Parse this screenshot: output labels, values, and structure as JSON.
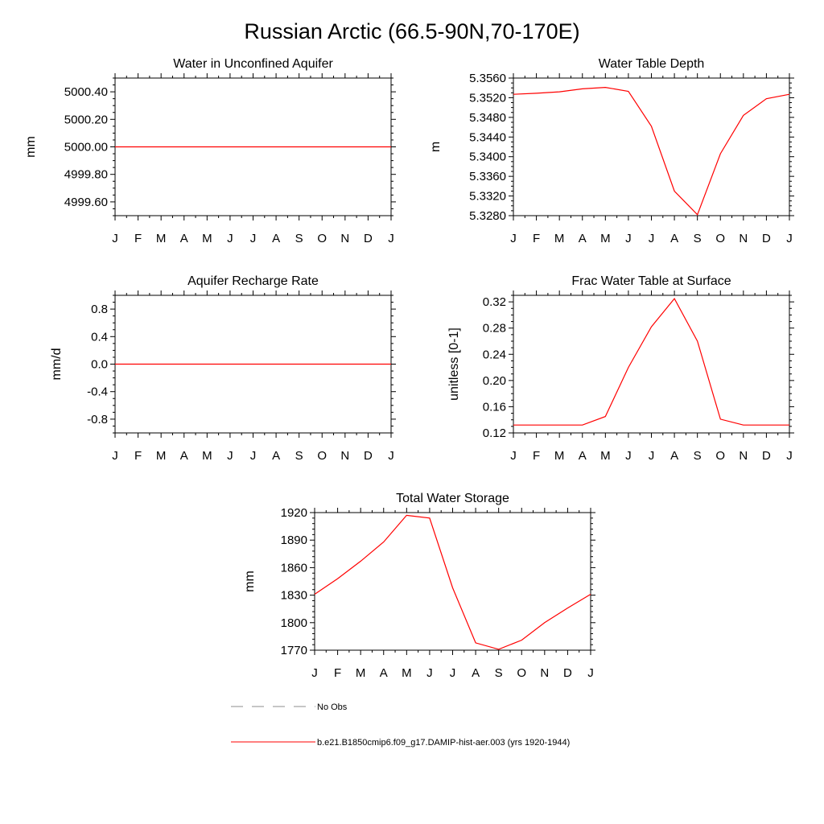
{
  "figure": {
    "title": "Russian Arctic (66.5-90N,70-170E)"
  },
  "months": [
    "J",
    "F",
    "M",
    "A",
    "M",
    "J",
    "J",
    "A",
    "S",
    "O",
    "N",
    "D",
    "J"
  ],
  "chart_data": [
    {
      "type": "line",
      "title": "Water in Unconfined Aquifer",
      "ylabel": "mm",
      "ylim": [
        4999.5,
        5000.5
      ],
      "yticks": [
        4999.6,
        4999.8,
        5000.0,
        5000.2,
        5000.4
      ],
      "ytick_labels": [
        "4999.60",
        "4999.80",
        "5000.00",
        "5000.20",
        "5000.40"
      ],
      "yminor": [
        4999.5,
        4999.55,
        4999.65,
        4999.7,
        4999.75,
        4999.85,
        4999.9,
        4999.95,
        5000.05,
        5000.1,
        5000.15,
        5000.25,
        5000.3,
        5000.35,
        5000.45,
        5000.5
      ],
      "x": [
        "J",
        "F",
        "M",
        "A",
        "M",
        "J",
        "J",
        "A",
        "S",
        "O",
        "N",
        "D",
        "J"
      ],
      "series": [
        {
          "values": [
            5000.0,
            5000.0,
            5000.0,
            5000.0,
            5000.0,
            5000.0,
            5000.0,
            5000.0,
            5000.0,
            5000.0,
            5000.0,
            5000.0,
            5000.0
          ],
          "color": "#ff0000"
        }
      ]
    },
    {
      "type": "line",
      "title": "Water Table Depth",
      "ylabel": "m",
      "ylim": [
        5.328,
        5.356
      ],
      "yticks": [
        5.328,
        5.332,
        5.336,
        5.34,
        5.344,
        5.348,
        5.352,
        5.356
      ],
      "ytick_labels": [
        "5.3280",
        "5.3320",
        "5.3360",
        "5.3400",
        "5.3440",
        "5.3480",
        "5.3520",
        "5.3560"
      ],
      "yminor": [
        5.329,
        5.33,
        5.331,
        5.333,
        5.334,
        5.335,
        5.337,
        5.338,
        5.339,
        5.341,
        5.342,
        5.343,
        5.345,
        5.346,
        5.347,
        5.349,
        5.35,
        5.351,
        5.353,
        5.354,
        5.355
      ],
      "x": [
        "J",
        "F",
        "M",
        "A",
        "M",
        "J",
        "J",
        "A",
        "S",
        "O",
        "N",
        "D",
        "J"
      ],
      "series": [
        {
          "values": [
            5.3527,
            5.3529,
            5.3532,
            5.3538,
            5.3541,
            5.3533,
            5.3462,
            5.333,
            5.3282,
            5.3406,
            5.3484,
            5.3518,
            5.3527
          ],
          "color": "#ff0000"
        }
      ]
    },
    {
      "type": "line",
      "title": "Aquifer Recharge Rate",
      "ylabel": "mm/d",
      "ylim": [
        -1.0,
        1.0
      ],
      "yticks": [
        -0.8,
        -0.4,
        0.0,
        0.4,
        0.8
      ],
      "ytick_labels": [
        "-0.8",
        "-0.4",
        "0.0",
        "0.4",
        "0.8"
      ],
      "yminor": [
        -1.0,
        -0.9,
        -0.7,
        -0.6,
        -0.5,
        -0.3,
        -0.2,
        -0.1,
        0.1,
        0.2,
        0.3,
        0.5,
        0.6,
        0.7,
        0.9,
        1.0
      ],
      "x": [
        "J",
        "F",
        "M",
        "A",
        "M",
        "J",
        "J",
        "A",
        "S",
        "O",
        "N",
        "D",
        "J"
      ],
      "series": [
        {
          "values": [
            0,
            0,
            0,
            0,
            0,
            0,
            0,
            0,
            0,
            0,
            0,
            0,
            0
          ],
          "color": "#ff0000"
        }
      ]
    },
    {
      "type": "line",
      "title": "Frac Water Table at Surface",
      "ylabel": "unitless [0-1]",
      "ylim": [
        0.12,
        0.33
      ],
      "yticks": [
        0.12,
        0.16,
        0.2,
        0.24,
        0.28,
        0.32
      ],
      "ytick_labels": [
        "0.12",
        "0.16",
        "0.20",
        "0.24",
        "0.28",
        "0.32"
      ],
      "yminor": [
        0.13,
        0.14,
        0.15,
        0.17,
        0.18,
        0.19,
        0.21,
        0.22,
        0.23,
        0.25,
        0.26,
        0.27,
        0.29,
        0.3,
        0.31,
        0.33
      ],
      "x": [
        "J",
        "F",
        "M",
        "A",
        "M",
        "J",
        "J",
        "A",
        "S",
        "O",
        "N",
        "D",
        "J"
      ],
      "series": [
        {
          "values": [
            0.132,
            0.132,
            0.132,
            0.132,
            0.145,
            0.22,
            0.282,
            0.325,
            0.26,
            0.141,
            0.132,
            0.132,
            0.132
          ],
          "color": "#ff0000"
        }
      ]
    },
    {
      "type": "line",
      "title": "Total Water Storage",
      "ylabel": "mm",
      "ylim": [
        1770,
        1920
      ],
      "yticks": [
        1770,
        1800,
        1830,
        1860,
        1890,
        1920
      ],
      "ytick_labels": [
        "1770",
        "1800",
        "1830",
        "1860",
        "1890",
        "1920"
      ],
      "yminor": [
        1776,
        1782,
        1788,
        1794,
        1806,
        1812,
        1818,
        1824,
        1836,
        1842,
        1848,
        1854,
        1866,
        1872,
        1878,
        1884,
        1896,
        1902,
        1908,
        1914
      ],
      "x": [
        "J",
        "F",
        "M",
        "A",
        "M",
        "J",
        "J",
        "A",
        "S",
        "O",
        "N",
        "D",
        "J"
      ],
      "series": [
        {
          "values": [
            1831,
            1848,
            1867,
            1888,
            1917,
            1914,
            1838,
            1778,
            1771,
            1781,
            1800,
            1816,
            1831
          ],
          "color": "#ff0000"
        }
      ]
    }
  ],
  "legend": {
    "placement": "bottom",
    "entries": [
      {
        "label": "No Obs",
        "style": "dashed",
        "color": "#8c8c8c"
      },
      {
        "label": "b.e21.B1850cmip6.f09_g17.DAMIP-hist-aer.003 (yrs 1920-1944)",
        "style": "solid",
        "color": "#ff0000"
      }
    ]
  }
}
